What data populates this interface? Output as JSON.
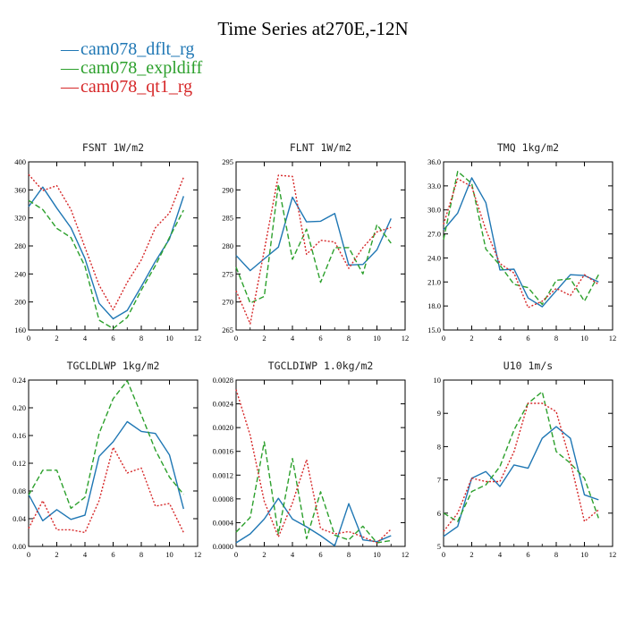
{
  "figure": {
    "title": "Time Series at270E,-12N",
    "legend": [
      {
        "label": "cam078_dflt_rg",
        "color": "#1f77b4",
        "dash": "solid"
      },
      {
        "label": "cam078_expldiff",
        "color": "#2ca02c",
        "dash": "dashed"
      },
      {
        "label": "cam078_qt1_rg",
        "color": "#d62728",
        "dash": "dotted"
      }
    ]
  },
  "chart_data": [
    {
      "type": "line",
      "title": "FSNT   1W/m2",
      "xlim": [
        0,
        12
      ],
      "ylim": [
        160,
        400
      ],
      "xticks": [
        0,
        2,
        4,
        6,
        8,
        10,
        12
      ],
      "yticks": [
        160,
        200,
        240,
        280,
        320,
        360,
        400
      ],
      "ytick_decimals": 0,
      "x": [
        0,
        1,
        2,
        3,
        4,
        5,
        6,
        7,
        8,
        9,
        10,
        11
      ],
      "series": [
        {
          "name": "cam078_dflt_rg",
          "values": [
            336,
            364,
            334,
            306,
            262,
            198,
            176,
            188,
            222,
            258,
            290,
            351
          ]
        },
        {
          "name": "cam078_expldiff",
          "values": [
            345,
            332,
            305,
            292,
            251,
            174,
            162,
            178,
            217,
            252,
            292,
            331
          ]
        },
        {
          "name": "cam078_qt1_rg",
          "values": [
            382,
            359,
            366,
            332,
            278,
            224,
            189,
            228,
            260,
            306,
            327,
            378
          ]
        }
      ]
    },
    {
      "type": "line",
      "title": "FLNT   1W/m2",
      "xlim": [
        0,
        12
      ],
      "ylim": [
        265,
        295
      ],
      "xticks": [
        0,
        2,
        4,
        6,
        8,
        10,
        12
      ],
      "yticks": [
        265,
        270,
        275,
        280,
        285,
        290,
        295
      ],
      "ytick_decimals": 0,
      "x": [
        0,
        1,
        2,
        3,
        4,
        5,
        6,
        7,
        8,
        9,
        10,
        11
      ],
      "series": [
        {
          "name": "cam078_dflt_rg",
          "values": [
            278.3,
            275.6,
            277.7,
            279.8,
            288.7,
            284.3,
            284.4,
            285.8,
            276.6,
            276.7,
            279.3,
            284.9
          ]
        },
        {
          "name": "cam078_expldiff",
          "values": [
            276.2,
            269.8,
            271.0,
            291.0,
            277.6,
            283.0,
            273.5,
            279.7,
            279.7,
            275.0,
            283.8,
            280.5
          ]
        },
        {
          "name": "cam078_qt1_rg",
          "values": [
            272.0,
            266.1,
            279.2,
            292.6,
            292.4,
            278.5,
            281.0,
            280.7,
            276.0,
            279.7,
            282.5,
            283.3
          ]
        }
      ]
    },
    {
      "type": "line",
      "title": "TMQ   1kg/m2",
      "xlim": [
        0,
        12
      ],
      "ylim": [
        15.0,
        36.0
      ],
      "xticks": [
        0,
        2,
        4,
        6,
        8,
        10,
        12
      ],
      "yticks": [
        15.0,
        18.0,
        21.0,
        24.0,
        27.0,
        30.0,
        33.0,
        36.0
      ],
      "ytick_decimals": 1,
      "x": [
        0,
        1,
        2,
        3,
        4,
        5,
        6,
        7,
        8,
        9,
        10,
        11
      ],
      "series": [
        {
          "name": "cam078_dflt_rg",
          "values": [
            27.5,
            29.6,
            34.0,
            30.9,
            22.5,
            22.6,
            19.0,
            17.9,
            19.9,
            21.9,
            21.8,
            21.0
          ]
        },
        {
          "name": "cam078_expldiff",
          "values": [
            26.3,
            34.8,
            33.3,
            25.1,
            23.1,
            20.7,
            20.3,
            18.2,
            21.2,
            21.4,
            18.6,
            21.9
          ]
        },
        {
          "name": "cam078_qt1_rg",
          "values": [
            28.2,
            33.9,
            32.9,
            27.5,
            23.3,
            22.1,
            17.8,
            18.6,
            20.2,
            19.3,
            21.9,
            20.7
          ]
        }
      ]
    },
    {
      "type": "line",
      "title": "TGCLDLWP   1kg/m2",
      "xlim": [
        0,
        12
      ],
      "ylim": [
        0.0,
        0.24
      ],
      "xticks": [
        0,
        2,
        4,
        6,
        8,
        10,
        12
      ],
      "yticks": [
        0.0,
        0.04,
        0.08,
        0.12,
        0.16,
        0.2,
        0.24
      ],
      "ytick_decimals": 2,
      "x": [
        0,
        1,
        2,
        3,
        4,
        5,
        6,
        7,
        8,
        9,
        10,
        11
      ],
      "series": [
        {
          "name": "cam078_dflt_rg",
          "values": [
            0.075,
            0.037,
            0.053,
            0.039,
            0.045,
            0.13,
            0.151,
            0.18,
            0.166,
            0.163,
            0.132,
            0.054
          ]
        },
        {
          "name": "cam078_expldiff",
          "values": [
            0.074,
            0.11,
            0.11,
            0.055,
            0.071,
            0.163,
            0.213,
            0.239,
            0.19,
            0.139,
            0.1,
            0.075
          ]
        },
        {
          "name": "cam078_qt1_rg",
          "values": [
            0.026,
            0.066,
            0.024,
            0.024,
            0.02,
            0.066,
            0.143,
            0.106,
            0.113,
            0.058,
            0.062,
            0.02
          ]
        }
      ]
    },
    {
      "type": "line",
      "title": "TGCLDIWP   1.0kg/m2",
      "xlim": [
        0,
        12
      ],
      "ylim": [
        0.0,
        0.0028
      ],
      "xticks": [
        0,
        2,
        4,
        6,
        8,
        10,
        12
      ],
      "yticks": [
        0.0,
        0.0004,
        0.0008,
        0.0012,
        0.0016,
        0.002,
        0.0024,
        0.0028
      ],
      "ytick_decimals": 4,
      "x": [
        0,
        1,
        2,
        3,
        4,
        5,
        6,
        7,
        8,
        9,
        10,
        11
      ],
      "series": [
        {
          "name": "cam078_dflt_rg",
          "values": [
            6e-05,
            0.00021,
            0.00046,
            0.00081,
            0.00046,
            0.00033,
            0.00018,
            1e-05,
            0.00072,
            0.00011,
            8e-05,
            0.00018
          ]
        },
        {
          "name": "cam078_expldiff",
          "values": [
            0.00024,
            0.00049,
            0.00176,
            0.00021,
            0.00148,
            0.00013,
            0.00092,
            0.00019,
            0.00011,
            0.00034,
            6e-05,
            0.0001
          ]
        },
        {
          "name": "cam078_qt1_rg",
          "values": [
            0.00264,
            0.00187,
            0.00076,
            0.00016,
            0.00073,
            0.00146,
            0.0003,
            0.00021,
            0.00025,
            0.00016,
            6e-05,
            0.00029
          ]
        }
      ]
    },
    {
      "type": "line",
      "title": "U10   1m/s",
      "xlim": [
        0,
        12
      ],
      "ylim": [
        5,
        10
      ],
      "xticks": [
        0,
        2,
        4,
        6,
        8,
        10,
        12
      ],
      "yticks": [
        5,
        6,
        7,
        8,
        9,
        10
      ],
      "ytick_decimals": 0,
      "x": [
        0,
        1,
        2,
        3,
        4,
        5,
        6,
        7,
        8,
        9,
        10,
        11
      ],
      "series": [
        {
          "name": "cam078_dflt_rg",
          "values": [
            5.3,
            5.6,
            7.05,
            7.25,
            6.8,
            7.45,
            7.35,
            8.25,
            8.6,
            8.25,
            6.55,
            6.4
          ]
        },
        {
          "name": "cam078_expldiff",
          "values": [
            6.0,
            5.75,
            6.65,
            6.85,
            7.4,
            8.5,
            9.3,
            9.65,
            7.85,
            7.5,
            7.05,
            5.85
          ]
        },
        {
          "name": "cam078_qt1_rg",
          "values": [
            5.45,
            6.0,
            7.05,
            6.95,
            6.95,
            7.85,
            9.3,
            9.3,
            9.05,
            7.55,
            5.75,
            6.1
          ]
        }
      ]
    }
  ]
}
